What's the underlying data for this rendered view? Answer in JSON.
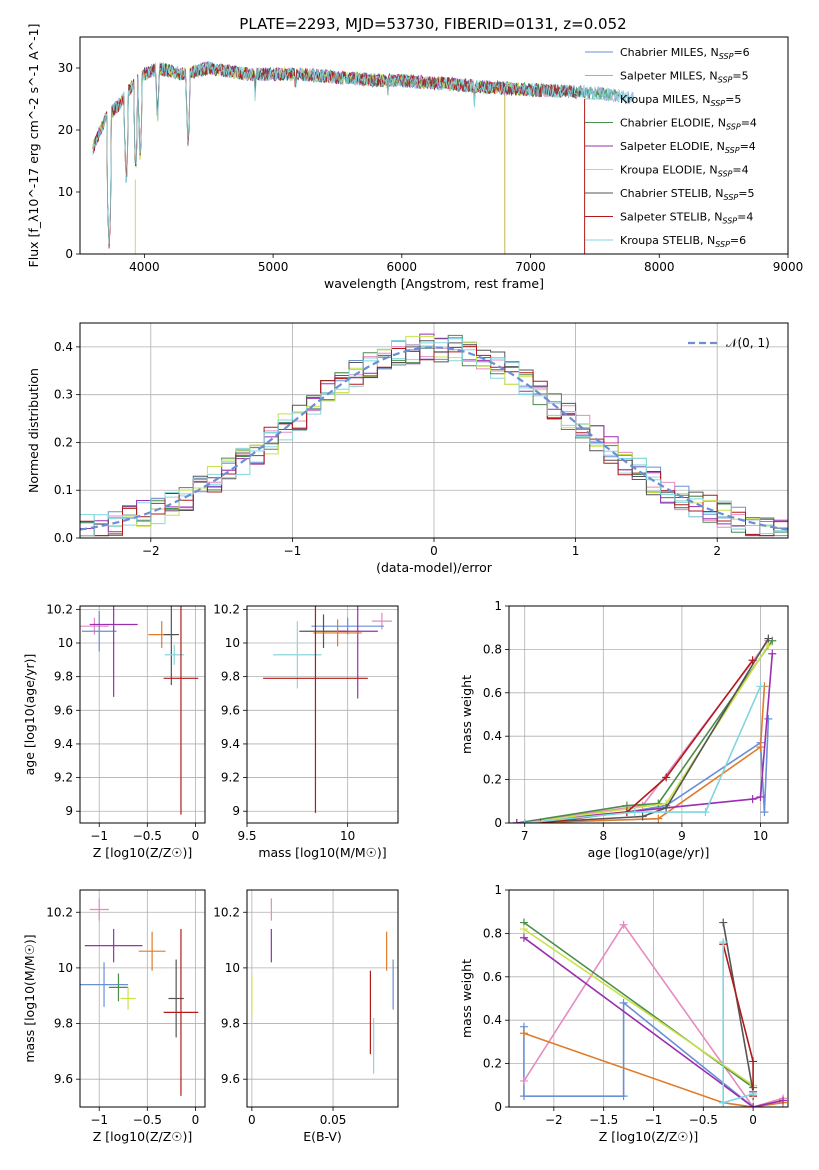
{
  "figure_title": "PLATE=2293, MJD=53730, FIBERID=0131, z=0.052",
  "colors": {
    "Chabrier MILES": "#6a8fd6",
    "Salpeter MILES": "#e58bc0",
    "Kroupa MILES": "#8ed5dc",
    "Chabrier ELODIE": "#4c8c4a",
    "Salpeter ELODIE": "#9a2fb0",
    "Kroupa ELODIE": "#c9e24a",
    "Chabrier STELIB": "#555555",
    "Salpeter STELIB": "#b01c1c",
    "Kroupa STELIB": "#7fd6e0",
    "orange": "#e07b2a"
  },
  "chart_data": [
    {
      "id": "spectrum",
      "type": "line",
      "xlabel": "wavelength [Angstrom, rest frame]",
      "ylabel": "Flux [f_λ10^-17 erg cm^-2 s^-1 A^-1]",
      "xlim": [
        3500,
        9000
      ],
      "ylim": [
        0,
        35
      ],
      "xticks": [
        4000,
        5000,
        6000,
        7000,
        8000,
        9000
      ],
      "yticks": [
        0,
        10,
        20,
        30
      ],
      "legend_position": "top-right",
      "legend": [
        "Chabrier MILES, N_SSP=6",
        "Salpeter MILES, N_SSP=5",
        "Kroupa MILES, N_SSP=5",
        "Chabrier ELODIE, N_SSP=4",
        "Salpeter ELODIE, N_SSP=4",
        "Kroupa ELODIE, N_SSP=4",
        "Chabrier STELIB, N_SSP=5",
        "Salpeter STELIB, N_SSP=4",
        "Kroupa STELIB, N_SSP=6"
      ],
      "continuum": [
        [
          3600,
          17
        ],
        [
          3700,
          22
        ],
        [
          3800,
          24
        ],
        [
          3900,
          27
        ],
        [
          4000,
          29
        ],
        [
          4100,
          30
        ],
        [
          4300,
          29
        ],
        [
          4500,
          30
        ],
        [
          4800,
          29
        ],
        [
          5000,
          29
        ],
        [
          5200,
          29
        ],
        [
          5500,
          28.5
        ],
        [
          5800,
          28
        ],
        [
          6000,
          28
        ],
        [
          6300,
          27.5
        ],
        [
          6600,
          27
        ],
        [
          7000,
          26.5
        ],
        [
          7500,
          26
        ],
        [
          7700,
          25.5
        ],
        [
          7800,
          25
        ]
      ],
      "absorption_lines": [
        [
          3727,
          0
        ],
        [
          3860,
          10
        ],
        [
          3933,
          12
        ],
        [
          3968,
          14
        ],
        [
          4102,
          20
        ],
        [
          4340,
          16
        ],
        [
          4861,
          24
        ],
        [
          5175,
          25
        ],
        [
          5890,
          24
        ],
        [
          6563,
          23
        ]
      ]
    },
    {
      "id": "residuals",
      "type": "histogram",
      "xlabel": "(data-model)/error",
      "ylabel": "Normed distribution",
      "xlim": [
        -2.5,
        2.5
      ],
      "ylim": [
        0,
        0.45
      ],
      "xticks": [
        -2,
        -1,
        0,
        1,
        2
      ],
      "yticks": [
        0.0,
        0.1,
        0.2,
        0.3,
        0.4
      ],
      "legend": [
        "𝒩(0, 1)"
      ],
      "legend_position": "top-right"
    },
    {
      "id": "age_vs_Z",
      "type": "scatter",
      "xlabel": "Z [log10(Z/Z☉)]",
      "ylabel": "age  [log10(age/yr)]",
      "xlim": [
        -1.2,
        0.1
      ],
      "ylim": [
        8.93,
        10.22
      ],
      "xticks": [
        -1,
        -0.5,
        0
      ],
      "yticks": [
        9.0,
        9.2,
        9.4,
        9.6,
        9.8,
        10.0,
        10.2
      ],
      "points": [
        {
          "x": -1.05,
          "y": 10.1,
          "ex": 0.15,
          "ey": 0.05,
          "c": "#e58bc0"
        },
        {
          "x": -1.0,
          "y": 10.07,
          "ex": 0.18,
          "ey": 0.12,
          "c": "#6a8fd6"
        },
        {
          "x": -0.85,
          "y": 10.11,
          "ex": 0.25,
          "ey": 0.43,
          "c": "#9a2fb0"
        },
        {
          "x": -0.35,
          "y": 10.05,
          "ex": 0.14,
          "ey": 0.08,
          "c": "#e07b2a"
        },
        {
          "x": -0.25,
          "y": 10.05,
          "ex": 0.08,
          "ey": 0.3,
          "c": "#555555"
        },
        {
          "x": -0.22,
          "y": 9.93,
          "ex": 0.1,
          "ey": 0.06,
          "c": "#8ed5dc"
        },
        {
          "x": -0.15,
          "y": 9.79,
          "ex": 0.18,
          "ey": 0.81,
          "c": "#b01c1c"
        }
      ]
    },
    {
      "id": "age_vs_mass",
      "type": "scatter",
      "xlabel": "mass [log10(M/M☉)]",
      "ylabel": "",
      "xlim": [
        9.5,
        10.25
      ],
      "ylim": [
        8.93,
        10.22
      ],
      "xticks": [
        9.5,
        10.0
      ],
      "yticks": [
        9.0,
        9.2,
        9.4,
        9.6,
        9.8,
        10.0,
        10.2
      ],
      "points": [
        {
          "x": 10.17,
          "y": 10.13,
          "ex": 0.05,
          "ey": 0.05,
          "c": "#e58bc0"
        },
        {
          "x": 10.0,
          "y": 10.1,
          "ex": 0.18,
          "ey": 0.05,
          "c": "#6a8fd6"
        },
        {
          "x": 9.88,
          "y": 10.07,
          "ex": 0.12,
          "ey": 0.1,
          "c": "#555555"
        },
        {
          "x": 10.05,
          "y": 10.07,
          "ex": 0.1,
          "ey": 0.4,
          "c": "#9a2fb0"
        },
        {
          "x": 9.95,
          "y": 10.06,
          "ex": 0.12,
          "ey": 0.08,
          "c": "#e07b2a"
        },
        {
          "x": 9.75,
          "y": 9.93,
          "ex": 0.12,
          "ey": 0.2,
          "c": "#8ed5dc"
        },
        {
          "x": 9.84,
          "y": 9.79,
          "ex": 0.26,
          "ey": 0.8,
          "c": "#b01c1c"
        }
      ]
    },
    {
      "id": "massweight_vs_age",
      "type": "line",
      "xlabel": "age  [log10(age/yr)]",
      "ylabel": "mass weight",
      "xlim": [
        6.8,
        10.35
      ],
      "ylim": [
        0,
        1
      ],
      "xticks": [
        7,
        8,
        9,
        10
      ],
      "yticks": [
        0.0,
        0.2,
        0.4,
        0.6,
        0.8,
        1.0
      ],
      "series": [
        {
          "c": "#6a8fd6",
          "pts": [
            [
              6.9,
              0
            ],
            [
              8.3,
              0.05
            ],
            [
              8.8,
              0.08
            ],
            [
              10.0,
              0.37
            ],
            [
              10.05,
              0.05
            ],
            [
              10.1,
              0.48
            ]
          ]
        },
        {
          "c": "#e58bc0",
          "pts": [
            [
              6.9,
              0
            ],
            [
              8.5,
              0.08
            ],
            [
              10.1,
              0.84
            ]
          ]
        },
        {
          "c": "#e07b2a",
          "pts": [
            [
              7.0,
              0
            ],
            [
              8.7,
              0.02
            ],
            [
              10.0,
              0.35
            ],
            [
              10.05,
              0.63
            ]
          ]
        },
        {
          "c": "#4c8c4a",
          "pts": [
            [
              6.9,
              0
            ],
            [
              8.3,
              0.08
            ],
            [
              8.7,
              0.09
            ],
            [
              10.15,
              0.84
            ]
          ]
        },
        {
          "c": "#9a2fb0",
          "pts": [
            [
              6.9,
              0
            ],
            [
              9.9,
              0.11
            ],
            [
              10.0,
              0.12
            ],
            [
              10.15,
              0.78
            ]
          ]
        },
        {
          "c": "#c9e24a",
          "pts": [
            [
              7.0,
              0
            ],
            [
              8.8,
              0.09
            ],
            [
              10.1,
              0.82
            ]
          ]
        },
        {
          "c": "#555555",
          "pts": [
            [
              7.0,
              0
            ],
            [
              8.5,
              0.03
            ],
            [
              8.8,
              0.07
            ],
            [
              10.1,
              0.85
            ]
          ]
        },
        {
          "c": "#b01c1c",
          "pts": [
            [
              7.2,
              0
            ],
            [
              8.3,
              0.05
            ],
            [
              8.8,
              0.21
            ],
            [
              9.9,
              0.75
            ]
          ]
        },
        {
          "c": "#7fd6e0",
          "pts": [
            [
              7.0,
              0
            ],
            [
              8.4,
              0.05
            ],
            [
              9.3,
              0.05
            ],
            [
              10.0,
              0.63
            ]
          ]
        }
      ]
    },
    {
      "id": "mass_vs_Z",
      "type": "scatter",
      "xlabel": "Z [log10(Z/Z☉)]",
      "ylabel": "mass [log10(M/M☉)]",
      "xlim": [
        -1.2,
        0.1
      ],
      "ylim": [
        9.5,
        10.28
      ],
      "xticks": [
        -1,
        -0.5,
        0
      ],
      "yticks": [
        9.6,
        9.8,
        10.0,
        10.2
      ],
      "points": [
        {
          "x": -1.0,
          "y": 10.21,
          "ex": 0.1,
          "ey": 0.04,
          "c": "#e58bc0"
        },
        {
          "x": -0.85,
          "y": 10.08,
          "ex": 0.3,
          "ey": 0.06,
          "c": "#9a2fb0"
        },
        {
          "x": -0.45,
          "y": 10.06,
          "ex": 0.14,
          "ey": 0.07,
          "c": "#e07b2a"
        },
        {
          "x": -0.95,
          "y": 9.94,
          "ex": 0.25,
          "ey": 0.08,
          "c": "#6a8fd6"
        },
        {
          "x": -0.8,
          "y": 9.93,
          "ex": 0.1,
          "ey": 0.05,
          "c": "#4c8c4a"
        },
        {
          "x": -0.7,
          "y": 9.89,
          "ex": 0.08,
          "ey": 0.04,
          "c": "#c9e24a"
        },
        {
          "x": -0.2,
          "y": 9.89,
          "ex": 0.08,
          "ey": 0.14,
          "c": "#555555"
        },
        {
          "x": -0.15,
          "y": 9.84,
          "ex": 0.18,
          "ey": 0.3,
          "c": "#b01c1c"
        }
      ]
    },
    {
      "id": "mass_vs_EBV",
      "type": "scatter",
      "xlabel": "E(B-V)",
      "ylabel": "",
      "xlim": [
        -0.003,
        0.09
      ],
      "ylim": [
        9.5,
        10.28
      ],
      "xticks": [
        0.0,
        0.05
      ],
      "yticks": [
        9.6,
        9.8,
        10.0,
        10.2
      ],
      "points": [
        {
          "x": 0.012,
          "y": 10.21,
          "ex": 0,
          "ey": 0.04,
          "c": "#e58bc0"
        },
        {
          "x": 0.012,
          "y": 10.08,
          "ex": 0,
          "ey": 0.06,
          "c": "#9a2fb0"
        },
        {
          "x": 0.083,
          "y": 10.06,
          "ex": 0,
          "ey": 0.07,
          "c": "#e07b2a"
        },
        {
          "x": 0.087,
          "y": 9.94,
          "ex": 0,
          "ey": 0.09,
          "c": "#6a8fd6"
        },
        {
          "x": 0.0,
          "y": 9.9,
          "ex": 0,
          "ey": 0.07,
          "c": "#c9e24a"
        },
        {
          "x": 0.073,
          "y": 9.84,
          "ex": 0,
          "ey": 0.15,
          "c": "#b01c1c"
        },
        {
          "x": 0.075,
          "y": 9.72,
          "ex": 0,
          "ey": 0.1,
          "c": "#8ed5dc"
        }
      ]
    },
    {
      "id": "massweight_vs_Z",
      "type": "line",
      "xlabel": "Z [log10(Z/Z☉)]",
      "ylabel": "mass weight",
      "xlim": [
        -2.45,
        0.35
      ],
      "ylim": [
        0,
        1
      ],
      "xticks": [
        -2.0,
        -1.5,
        -1.0,
        -0.5,
        0.0
      ],
      "yticks": [
        0.0,
        0.2,
        0.4,
        0.6,
        0.8,
        1.0
      ],
      "series": [
        {
          "c": "#6a8fd6",
          "pts": [
            [
              -2.3,
              0.37
            ],
            [
              -2.3,
              0.05
            ],
            [
              -1.3,
              0.05
            ],
            [
              -1.3,
              0.48
            ],
            [
              0.0,
              0.0
            ]
          ]
        },
        {
          "c": "#e58bc0",
          "pts": [
            [
              -2.3,
              0.12
            ],
            [
              -1.3,
              0.84
            ],
            [
              0.0,
              0.0
            ],
            [
              0.3,
              0.04
            ]
          ]
        },
        {
          "c": "#e07b2a",
          "pts": [
            [
              -2.3,
              0.34
            ],
            [
              -0.3,
              0.02
            ],
            [
              0.0,
              0.0
            ],
            [
              0.3,
              0.02
            ]
          ]
        },
        {
          "c": "#4c8c4a",
          "pts": [
            [
              -2.3,
              0.85
            ],
            [
              0.0,
              0.09
            ]
          ]
        },
        {
          "c": "#9a2fb0",
          "pts": [
            [
              -2.3,
              0.78
            ],
            [
              0.0,
              0.0
            ],
            [
              0.3,
              0.03
            ]
          ]
        },
        {
          "c": "#c9e24a",
          "pts": [
            [
              -2.3,
              0.82
            ],
            [
              0.0,
              0.1
            ]
          ]
        },
        {
          "c": "#555555",
          "pts": [
            [
              -0.3,
              0.85
            ],
            [
              0.0,
              0.07
            ]
          ]
        },
        {
          "c": "#b01c1c",
          "pts": [
            [
              -0.3,
              0.75
            ],
            [
              0.0,
              0.21
            ],
            [
              0.0,
              0.05
            ]
          ]
        },
        {
          "c": "#7fd6e0",
          "pts": [
            [
              -0.3,
              0.76
            ],
            [
              -0.3,
              0.02
            ],
            [
              0.0,
              0.06
            ]
          ]
        }
      ]
    }
  ]
}
